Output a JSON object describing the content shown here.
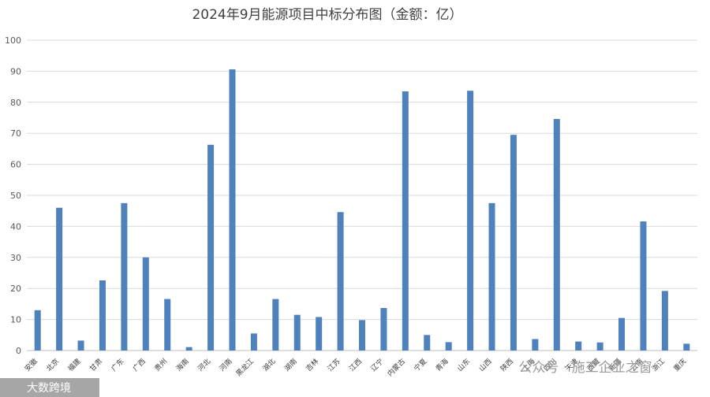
{
  "chart_data": {
    "type": "bar",
    "title": "2024年9月能源项目中标分布图（金额：亿）",
    "xlabel": "",
    "ylabel": "",
    "ylim": [
      0,
      100
    ],
    "yticks": [
      0,
      10,
      20,
      30,
      40,
      50,
      60,
      70,
      80,
      90,
      100
    ],
    "grid": true,
    "legend": "none",
    "bar_color": "#4f81bd",
    "categories": [
      "安徽",
      "北京",
      "福建",
      "甘肃",
      "广东",
      "广西",
      "贵州",
      "海南",
      "河北",
      "河南",
      "黑龙江",
      "湖北",
      "湖南",
      "吉林",
      "江苏",
      "江西",
      "辽宁",
      "内蒙古",
      "宁夏",
      "青海",
      "山东",
      "山西",
      "陕西",
      "上海",
      "四川",
      "天津",
      "西藏",
      "新疆",
      "云南",
      "浙江",
      "重庆"
    ],
    "values": [
      13,
      46,
      3.2,
      22.6,
      47.5,
      30,
      16.6,
      1.1,
      66.3,
      90.6,
      5.5,
      16.6,
      11.5,
      10.8,
      44.6,
      9.8,
      13.7,
      83.5,
      5,
      2.7,
      83.7,
      47.5,
      69.5,
      3.7,
      74.6,
      2.9,
      2.6,
      10.5,
      41.6,
      19.2,
      2.2
    ]
  },
  "watermarks": {
    "wechat": "公众号 · 施工企业之窗",
    "corner": "大数跨境"
  }
}
